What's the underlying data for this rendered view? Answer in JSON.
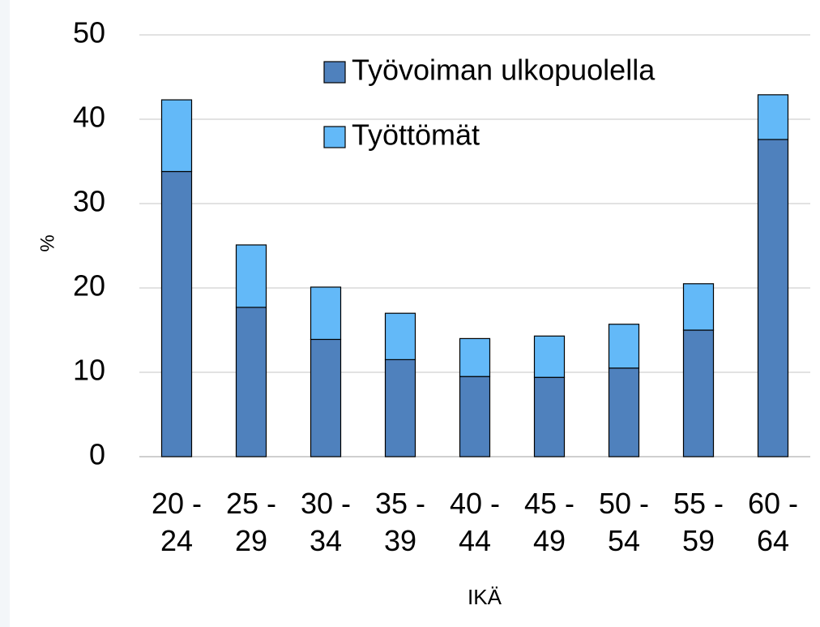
{
  "chart_data": {
    "type": "stacked_bar",
    "y_label": "%",
    "x_label": "IKÄ",
    "categories": [
      "20 - 24",
      "25 - 29",
      "30 - 34",
      "35 - 39",
      "40 - 44",
      "45 - 49",
      "50 - 54",
      "55 - 59",
      "60 - 64"
    ],
    "series": [
      {
        "name": "Työvoiman ulkopuolella",
        "color": "#4f81bd",
        "values": [
          33.8,
          17.7,
          13.9,
          11.5,
          9.5,
          9.4,
          10.5,
          15.0,
          37.6
        ]
      },
      {
        "name": "Työttömät",
        "color": "#63b9f8",
        "values": [
          8.5,
          7.4,
          6.2,
          5.5,
          4.5,
          4.9,
          5.2,
          5.5,
          5.3
        ]
      }
    ],
    "ylim": [
      0,
      50
    ],
    "yticks": [
      0,
      10,
      20,
      30,
      40,
      50
    ],
    "grid": true
  }
}
